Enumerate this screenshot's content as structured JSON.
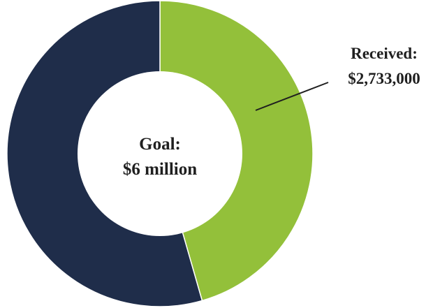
{
  "chart_data": {
    "type": "pie",
    "variant": "donut",
    "total": 6000000,
    "slices": [
      {
        "label": "Received",
        "value": 2733000,
        "color": "#93c03a"
      },
      {
        "label": "",
        "value": 3267000,
        "color": "#1f2d4a"
      }
    ],
    "center_label": {
      "line1": "Goal:",
      "line2": "$6 million"
    },
    "callout": {
      "line1": "Received:",
      "line2": "$2,733,000"
    }
  }
}
